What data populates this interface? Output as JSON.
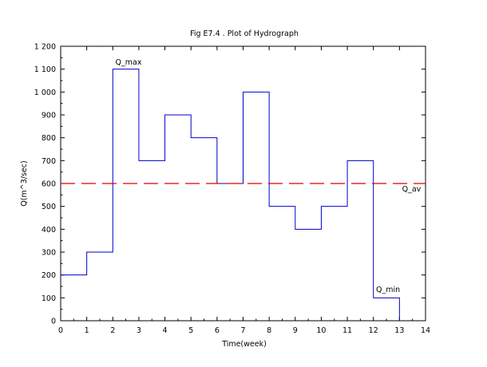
{
  "chart_data": {
    "type": "line",
    "title": "Fig E7.4 . Plot of Hydrograph",
    "xlabel": "Time(week)",
    "ylabel": "Q(m^3/sec)",
    "xlim": [
      0,
      14
    ],
    "ylim": [
      0,
      1200
    ],
    "x_ticks": [
      0,
      1,
      2,
      3,
      4,
      5,
      6,
      7,
      8,
      9,
      10,
      11,
      12,
      13,
      14
    ],
    "y_ticks": [
      0,
      100,
      200,
      300,
      400,
      500,
      600,
      700,
      800,
      900,
      1000,
      1100,
      1200
    ],
    "y_tick_labels": [
      "0",
      "100",
      "200",
      "300",
      "400",
      "500",
      "600",
      "700",
      "800",
      "900",
      "1 000",
      "1 100",
      "1 200"
    ],
    "grid": false,
    "series": [
      {
        "style": "step",
        "color": "#0000cc",
        "x": [
          0,
          1,
          2,
          3,
          4,
          5,
          6,
          7,
          8,
          9,
          10,
          11,
          12,
          13
        ],
        "values": [
          200,
          300,
          1100,
          700,
          900,
          800,
          600,
          1000,
          500,
          400,
          500,
          700,
          100,
          0
        ]
      },
      {
        "style": "dashed",
        "color": "#dd0000",
        "x": [
          0,
          14
        ],
        "values": [
          600,
          600
        ]
      }
    ],
    "annotations": [
      {
        "text": "Q_max",
        "x": 2.1,
        "y": 1120
      },
      {
        "text": "Q_av",
        "x": 13.1,
        "y": 565
      },
      {
        "text": "Q_min",
        "x": 12.1,
        "y": 125
      }
    ]
  }
}
